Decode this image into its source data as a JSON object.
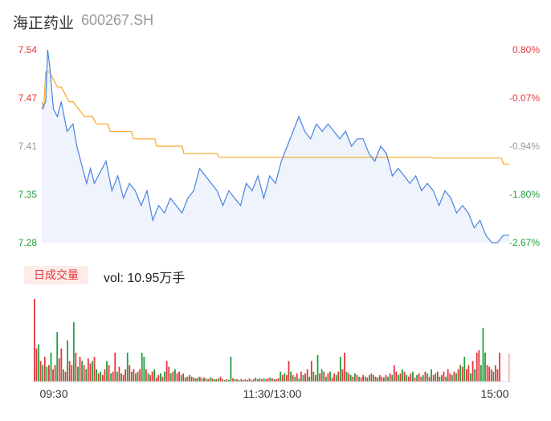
{
  "header": {
    "name": "海正药业",
    "code": "600267.SH"
  },
  "volume_panel": {
    "badge": "日成交量",
    "text": "vol: 10.95万手"
  },
  "colors": {
    "up": "#e4373e",
    "down": "#22a03c",
    "price_line": "#4a82e0",
    "avg_line": "#f5a623",
    "area": "#eef3fc"
  },
  "chart_data": [
    {
      "type": "line",
      "title": "",
      "x_time_labels": [
        "09:30",
        "11:30/13:00",
        "15:00"
      ],
      "y_ticks": [
        "7.54",
        "7.47",
        "7.41",
        "7.35",
        "7.28"
      ],
      "y_pct_ticks": [
        "0.80%",
        "-0.07%",
        "-0.94%",
        "-1.80%",
        "-2.67%"
      ],
      "y_tick_colors": [
        "#e4373e",
        "#e4373e",
        "#999999",
        "#22a03c",
        "#22a03c"
      ],
      "ylim": [
        7.28,
        7.54
      ],
      "x_range": [
        0,
        240
      ],
      "series": [
        {
          "name": "",
          "kind": "price",
          "x": [
            0,
            2,
            3,
            4,
            6,
            8,
            10,
            13,
            16,
            18,
            21,
            23,
            25,
            27,
            29,
            31,
            33,
            36,
            39,
            42,
            45,
            48,
            51,
            54,
            57,
            60,
            63,
            66,
            69,
            72,
            75,
            78,
            81,
            84,
            87,
            90,
            93,
            96,
            99,
            102,
            105,
            108,
            111,
            114,
            117,
            120,
            123,
            126,
            129,
            132,
            135,
            138,
            141,
            144,
            147,
            150,
            153,
            156,
            159,
            162,
            165,
            168,
            171,
            174,
            177,
            180,
            183,
            186,
            189,
            192,
            195,
            198,
            201,
            204,
            207,
            210,
            213,
            216,
            219,
            222,
            225,
            228,
            231,
            234,
            237,
            240
          ],
          "values": [
            7.46,
            7.47,
            7.54,
            7.52,
            7.46,
            7.45,
            7.47,
            7.43,
            7.44,
            7.41,
            7.38,
            7.36,
            7.38,
            7.36,
            7.37,
            7.38,
            7.39,
            7.35,
            7.37,
            7.34,
            7.36,
            7.35,
            7.33,
            7.35,
            7.31,
            7.33,
            7.32,
            7.34,
            7.33,
            7.32,
            7.34,
            7.35,
            7.38,
            7.37,
            7.36,
            7.35,
            7.33,
            7.35,
            7.34,
            7.33,
            7.36,
            7.35,
            7.37,
            7.34,
            7.37,
            7.36,
            7.39,
            7.41,
            7.43,
            7.45,
            7.43,
            7.42,
            7.44,
            7.43,
            7.44,
            7.43,
            7.42,
            7.43,
            7.41,
            7.42,
            7.42,
            7.4,
            7.39,
            7.41,
            7.4,
            7.37,
            7.38,
            7.37,
            7.36,
            7.37,
            7.35,
            7.36,
            7.35,
            7.33,
            7.35,
            7.34,
            7.32,
            7.33,
            7.32,
            7.3,
            7.31,
            7.29,
            7.28,
            7.28,
            7.29,
            7.29
          ]
        },
        {
          "name": "",
          "kind": "average",
          "x": [
            0,
            1,
            2,
            4,
            8,
            10,
            14,
            16,
            22,
            26,
            28,
            34,
            35,
            46,
            47,
            58,
            59,
            72,
            73,
            90,
            91,
            140,
            141,
            200,
            201,
            216,
            217,
            225,
            226,
            236,
            237,
            240
          ],
          "values": [
            7.47,
            7.46,
            7.51,
            7.51,
            7.49,
            7.49,
            7.47,
            7.47,
            7.45,
            7.45,
            7.44,
            7.44,
            7.43,
            7.43,
            7.42,
            7.42,
            7.41,
            7.41,
            7.4,
            7.4,
            7.395,
            7.395,
            7.395,
            7.395,
            7.394,
            7.394,
            7.394,
            7.394,
            7.394,
            7.394,
            7.386,
            7.386
          ]
        }
      ]
    },
    {
      "type": "bar",
      "title": "",
      "x_range": [
        0,
        240
      ],
      "y_max": 100,
      "bars": [
        [
          100,
          "up"
        ],
        [
          40,
          "up"
        ],
        [
          45,
          "down"
        ],
        [
          25,
          "up"
        ],
        [
          20,
          "down"
        ],
        [
          30,
          "up"
        ],
        [
          18,
          "down"
        ],
        [
          20,
          "up"
        ],
        [
          35,
          "down"
        ],
        [
          15,
          "up"
        ],
        [
          20,
          "up"
        ],
        [
          60,
          "down"
        ],
        [
          28,
          "up"
        ],
        [
          40,
          "up"
        ],
        [
          15,
          "down"
        ],
        [
          12,
          "up"
        ],
        [
          50,
          "down"
        ],
        [
          25,
          "up"
        ],
        [
          20,
          "up"
        ],
        [
          72,
          "down"
        ],
        [
          35,
          "up"
        ],
        [
          18,
          "down"
        ],
        [
          30,
          "up"
        ],
        [
          25,
          "down"
        ],
        [
          20,
          "up"
        ],
        [
          15,
          "down"
        ],
        [
          28,
          "up"
        ],
        [
          22,
          "up"
        ],
        [
          25,
          "down"
        ],
        [
          30,
          "up"
        ],
        [
          15,
          "down"
        ],
        [
          10,
          "up"
        ],
        [
          12,
          "down"
        ],
        [
          8,
          "up"
        ],
        [
          15,
          "up"
        ],
        [
          25,
          "down"
        ],
        [
          20,
          "up"
        ],
        [
          10,
          "down"
        ],
        [
          12,
          "up"
        ],
        [
          35,
          "up"
        ],
        [
          12,
          "down"
        ],
        [
          18,
          "up"
        ],
        [
          10,
          "down"
        ],
        [
          8,
          "up"
        ],
        [
          15,
          "up"
        ],
        [
          35,
          "down"
        ],
        [
          20,
          "up"
        ],
        [
          12,
          "down"
        ],
        [
          15,
          "up"
        ],
        [
          10,
          "down"
        ],
        [
          12,
          "up"
        ],
        [
          15,
          "up"
        ],
        [
          35,
          "down"
        ],
        [
          30,
          "down"
        ],
        [
          15,
          "up"
        ],
        [
          10,
          "down"
        ],
        [
          8,
          "up"
        ],
        [
          12,
          "up"
        ],
        [
          15,
          "down"
        ],
        [
          5,
          "up"
        ],
        [
          8,
          "up"
        ],
        [
          10,
          "down"
        ],
        [
          6,
          "up"
        ],
        [
          12,
          "down"
        ],
        [
          25,
          "up"
        ],
        [
          18,
          "up"
        ],
        [
          10,
          "down"
        ],
        [
          12,
          "up"
        ],
        [
          15,
          "down"
        ],
        [
          10,
          "up"
        ],
        [
          12,
          "up"
        ],
        [
          8,
          "down"
        ],
        [
          10,
          "up"
        ],
        [
          5,
          "down"
        ],
        [
          6,
          "up"
        ],
        [
          8,
          "down"
        ],
        [
          6,
          "up"
        ],
        [
          5,
          "down"
        ],
        [
          4,
          "up"
        ],
        [
          5,
          "down"
        ],
        [
          6,
          "up"
        ],
        [
          4,
          "down"
        ],
        [
          5,
          "up"
        ],
        [
          4,
          "down"
        ],
        [
          3,
          "up"
        ],
        [
          5,
          "down"
        ],
        [
          4,
          "up"
        ],
        [
          3,
          "down"
        ],
        [
          3,
          "up"
        ],
        [
          4,
          "down"
        ],
        [
          6,
          "up"
        ],
        [
          3,
          "up"
        ],
        [
          2,
          "down"
        ],
        [
          3,
          "up"
        ],
        [
          2,
          "down"
        ],
        [
          30,
          "down"
        ],
        [
          4,
          "up"
        ],
        [
          3,
          "down"
        ],
        [
          3,
          "up"
        ],
        [
          2,
          "down"
        ],
        [
          3,
          "up"
        ],
        [
          2,
          "down"
        ],
        [
          3,
          "up"
        ],
        [
          2,
          "down"
        ],
        [
          4,
          "up"
        ],
        [
          2,
          "down"
        ],
        [
          3,
          "up"
        ],
        [
          5,
          "down"
        ],
        [
          3,
          "up"
        ],
        [
          4,
          "down"
        ],
        [
          3,
          "up"
        ],
        [
          4,
          "down"
        ],
        [
          3,
          "up"
        ],
        [
          4,
          "up"
        ],
        [
          5,
          "down"
        ],
        [
          4,
          "up"
        ],
        [
          3,
          "down"
        ],
        [
          3,
          "up"
        ],
        [
          4,
          "up"
        ],
        [
          12,
          "down"
        ],
        [
          8,
          "up"
        ],
        [
          10,
          "down"
        ],
        [
          8,
          "up"
        ],
        [
          25,
          "up"
        ],
        [
          12,
          "down"
        ],
        [
          8,
          "up"
        ],
        [
          6,
          "down"
        ],
        [
          10,
          "up"
        ],
        [
          4,
          "down"
        ],
        [
          12,
          "up"
        ],
        [
          8,
          "down"
        ],
        [
          10,
          "up"
        ],
        [
          15,
          "up"
        ],
        [
          6,
          "down"
        ],
        [
          25,
          "up"
        ],
        [
          12,
          "down"
        ],
        [
          8,
          "up"
        ],
        [
          32,
          "down"
        ],
        [
          10,
          "up"
        ],
        [
          15,
          "down"
        ],
        [
          12,
          "up"
        ],
        [
          6,
          "down"
        ],
        [
          10,
          "up"
        ],
        [
          12,
          "down"
        ],
        [
          5,
          "up"
        ],
        [
          10,
          "up"
        ],
        [
          8,
          "down"
        ],
        [
          12,
          "up"
        ],
        [
          30,
          "down"
        ],
        [
          15,
          "up"
        ],
        [
          35,
          "up"
        ],
        [
          12,
          "down"
        ],
        [
          10,
          "up"
        ],
        [
          8,
          "down"
        ],
        [
          6,
          "up"
        ],
        [
          10,
          "down"
        ],
        [
          8,
          "up"
        ],
        [
          6,
          "down"
        ],
        [
          5,
          "up"
        ],
        [
          8,
          "up"
        ],
        [
          6,
          "down"
        ],
        [
          5,
          "up"
        ],
        [
          8,
          "down"
        ],
        [
          10,
          "up"
        ],
        [
          8,
          "down"
        ],
        [
          6,
          "up"
        ],
        [
          5,
          "down"
        ],
        [
          8,
          "up"
        ],
        [
          6,
          "up"
        ],
        [
          5,
          "down"
        ],
        [
          8,
          "up"
        ],
        [
          6,
          "down"
        ],
        [
          10,
          "up"
        ],
        [
          8,
          "down"
        ],
        [
          20,
          "up"
        ],
        [
          12,
          "up"
        ],
        [
          8,
          "down"
        ],
        [
          10,
          "up"
        ],
        [
          15,
          "down"
        ],
        [
          12,
          "up"
        ],
        [
          8,
          "down"
        ],
        [
          6,
          "up"
        ],
        [
          10,
          "up"
        ],
        [
          12,
          "down"
        ],
        [
          5,
          "up"
        ],
        [
          8,
          "down"
        ],
        [
          10,
          "up"
        ],
        [
          6,
          "up"
        ],
        [
          8,
          "down"
        ],
        [
          12,
          "up"
        ],
        [
          10,
          "down"
        ],
        [
          6,
          "up"
        ],
        [
          15,
          "down"
        ],
        [
          8,
          "up"
        ],
        [
          10,
          "down"
        ],
        [
          12,
          "up"
        ],
        [
          6,
          "down"
        ],
        [
          8,
          "up"
        ],
        [
          12,
          "up"
        ],
        [
          6,
          "down"
        ],
        [
          15,
          "up"
        ],
        [
          10,
          "up"
        ],
        [
          8,
          "down"
        ],
        [
          12,
          "up"
        ],
        [
          10,
          "down"
        ],
        [
          15,
          "up"
        ],
        [
          20,
          "down"
        ],
        [
          18,
          "up"
        ],
        [
          30,
          "down"
        ],
        [
          15,
          "up"
        ],
        [
          20,
          "up"
        ],
        [
          10,
          "down"
        ],
        [
          25,
          "up"
        ],
        [
          15,
          "down"
        ],
        [
          35,
          "up"
        ],
        [
          38,
          "up"
        ],
        [
          20,
          "down"
        ],
        [
          65,
          "down"
        ],
        [
          35,
          "down"
        ],
        [
          20,
          "up"
        ],
        [
          18,
          "up"
        ],
        [
          15,
          "up"
        ],
        [
          12,
          "down"
        ],
        [
          20,
          "up"
        ],
        [
          15,
          "up"
        ],
        [
          35,
          "up"
        ],
        [
          0,
          "up"
        ],
        [
          0,
          "up"
        ],
        [
          0,
          "up"
        ],
        [
          0,
          "up"
        ]
      ]
    }
  ]
}
